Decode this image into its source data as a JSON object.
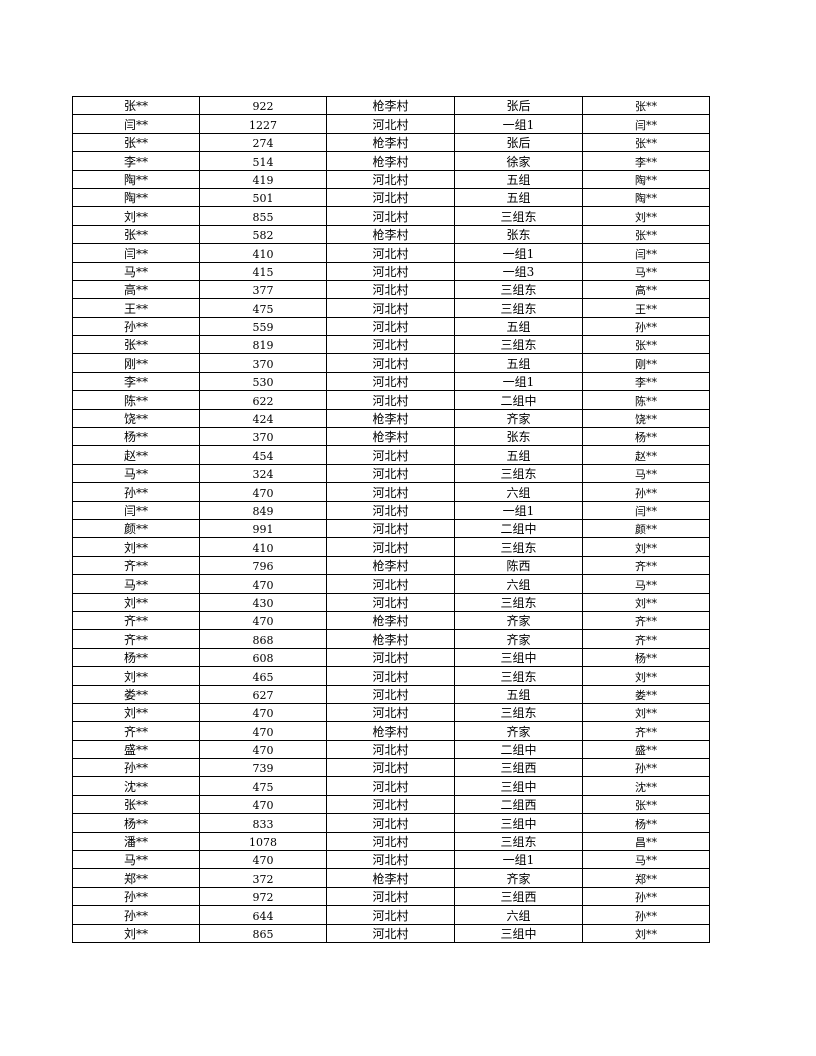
{
  "table": {
    "rows": [
      [
        "张**",
        "922",
        "枪李村",
        "张后",
        "张**"
      ],
      [
        "闫**",
        "1227",
        "河北村",
        "一组1",
        "闫**"
      ],
      [
        "张**",
        "274",
        "枪李村",
        "张后",
        "张**"
      ],
      [
        "李**",
        "514",
        "枪李村",
        "徐家",
        "李**"
      ],
      [
        "陶**",
        "419",
        "河北村",
        "五组",
        "陶**"
      ],
      [
        "陶**",
        "501",
        "河北村",
        "五组",
        "陶**"
      ],
      [
        "刘**",
        "855",
        "河北村",
        "三组东",
        "刘**"
      ],
      [
        "张**",
        "582",
        "枪李村",
        "张东",
        "张**"
      ],
      [
        "闫**",
        "410",
        "河北村",
        "一组1",
        "闫**"
      ],
      [
        "马**",
        "415",
        "河北村",
        "一组3",
        "马**"
      ],
      [
        "高**",
        "377",
        "河北村",
        "三组东",
        "高**"
      ],
      [
        "王**",
        "475",
        "河北村",
        "三组东",
        "王**"
      ],
      [
        "孙**",
        "559",
        "河北村",
        "五组",
        "孙**"
      ],
      [
        "张**",
        "819",
        "河北村",
        "三组东",
        "张**"
      ],
      [
        "刚**",
        "370",
        "河北村",
        "五组",
        "刚**"
      ],
      [
        "李**",
        "530",
        "河北村",
        "一组1",
        "李**"
      ],
      [
        "陈**",
        "622",
        "河北村",
        "二组中",
        "陈**"
      ],
      [
        "饶**",
        "424",
        "枪李村",
        "齐家",
        "饶**"
      ],
      [
        "杨**",
        "370",
        "枪李村",
        "张东",
        "杨**"
      ],
      [
        "赵**",
        "454",
        "河北村",
        "五组",
        "赵**"
      ],
      [
        "马**",
        "324",
        "河北村",
        "三组东",
        "马**"
      ],
      [
        "孙**",
        "470",
        "河北村",
        "六组",
        "孙**"
      ],
      [
        "闫**",
        "849",
        "河北村",
        "一组1",
        "闫**"
      ],
      [
        "颜**",
        "991",
        "河北村",
        "二组中",
        "颜**"
      ],
      [
        "刘**",
        "410",
        "河北村",
        "三组东",
        "刘**"
      ],
      [
        "齐**",
        "796",
        "枪李村",
        "陈西",
        "齐**"
      ],
      [
        "马**",
        "470",
        "河北村",
        "六组",
        "马**"
      ],
      [
        "刘**",
        "430",
        "河北村",
        "三组东",
        "刘**"
      ],
      [
        "齐**",
        "470",
        "枪李村",
        "齐家",
        "齐**"
      ],
      [
        "齐**",
        "868",
        "枪李村",
        "齐家",
        "齐**"
      ],
      [
        "杨**",
        "608",
        "河北村",
        "三组中",
        "杨**"
      ],
      [
        "刘**",
        "465",
        "河北村",
        "三组东",
        "刘**"
      ],
      [
        "娄**",
        "627",
        "河北村",
        "五组",
        "娄**"
      ],
      [
        "刘**",
        "470",
        "河北村",
        "三组东",
        "刘**"
      ],
      [
        "齐**",
        "470",
        "枪李村",
        "齐家",
        "齐**"
      ],
      [
        "盛**",
        "470",
        "河北村",
        "二组中",
        "盛**"
      ],
      [
        "孙**",
        "739",
        "河北村",
        "三组西",
        "孙**"
      ],
      [
        "沈**",
        "475",
        "河北村",
        "三组中",
        "沈**"
      ],
      [
        "张**",
        "470",
        "河北村",
        "二组西",
        "张**"
      ],
      [
        "杨**",
        "833",
        "河北村",
        "三组中",
        "杨**"
      ],
      [
        "潘**",
        "1078",
        "河北村",
        "三组东",
        "昌**"
      ],
      [
        "马**",
        "470",
        "河北村",
        "一组1",
        "马**"
      ],
      [
        "郑**",
        "372",
        "枪李村",
        "齐家",
        "郑**"
      ],
      [
        "孙**",
        "972",
        "河北村",
        "三组西",
        "孙**"
      ],
      [
        "孙**",
        "644",
        "河北村",
        "六组",
        "孙**"
      ],
      [
        "刘**",
        "865",
        "河北村",
        "三组中",
        "刘**"
      ]
    ]
  }
}
